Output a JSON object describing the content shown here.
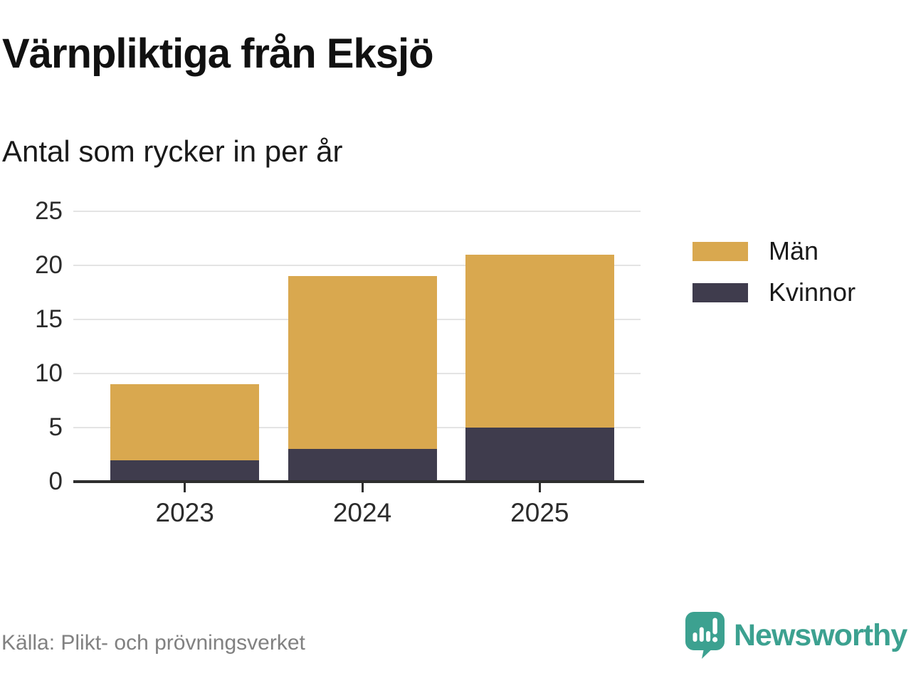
{
  "header": {
    "title": "Värnpliktiga från Eksjö",
    "subtitle": "Antal som rycker in per år"
  },
  "chart_data": {
    "type": "bar",
    "stacked": true,
    "title": "Värnpliktiga från Eksjö",
    "subtitle": "Antal som rycker in per år",
    "categories": [
      "2023",
      "2024",
      "2025"
    ],
    "series": [
      {
        "name": "Män",
        "color": "#D9A84F",
        "values": [
          7,
          16,
          16
        ]
      },
      {
        "name": "Kvinnor",
        "color": "#3F3C4D",
        "values": [
          2,
          3,
          5
        ]
      }
    ],
    "stack_order_bottom_to_top": [
      "Kvinnor",
      "Män"
    ],
    "totals": [
      9,
      19,
      21
    ],
    "xlabel": "",
    "ylabel": "",
    "ylim": [
      0,
      25
    ],
    "yticks": [
      0,
      5,
      10,
      15,
      20,
      25
    ],
    "grid": "horizontal",
    "legend_position": "right"
  },
  "footer": {
    "source": "Källa: Plikt- och prövningsverket",
    "logo_text": "Newsworthy"
  },
  "colors": {
    "man_gold": "#D9A84F",
    "kvinnor_dark": "#3F3C4D",
    "grid": "#E4E4E4",
    "axis": "#2E2E2E",
    "tick_text": "#2B2B2B",
    "title_text": "#111111",
    "source_text": "#818181",
    "brand_teal": "#3CA190",
    "background": "#FFFFFF"
  }
}
